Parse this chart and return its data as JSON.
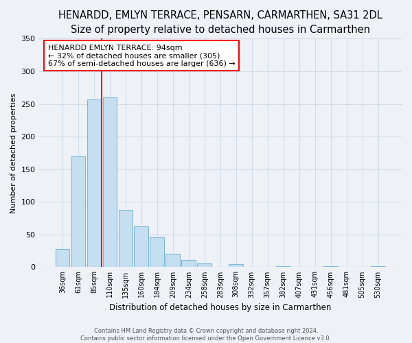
{
  "title": "HENARDD, EMLYN TERRACE, PENSARN, CARMARTHEN, SA31 2DL",
  "subtitle": "Size of property relative to detached houses in Carmarthen",
  "xlabel": "Distribution of detached houses by size in Carmarthen",
  "ylabel": "Number of detached properties",
  "bar_color": "#c5dff0",
  "bar_edge_color": "#7fb9d9",
  "categories": [
    "36sqm",
    "61sqm",
    "85sqm",
    "110sqm",
    "135sqm",
    "160sqm",
    "184sqm",
    "209sqm",
    "234sqm",
    "258sqm",
    "283sqm",
    "308sqm",
    "332sqm",
    "357sqm",
    "382sqm",
    "407sqm",
    "431sqm",
    "456sqm",
    "481sqm",
    "505sqm",
    "530sqm"
  ],
  "values": [
    28,
    170,
    257,
    260,
    88,
    62,
    46,
    20,
    11,
    6,
    0,
    5,
    0,
    0,
    2,
    0,
    0,
    1,
    0,
    0,
    1
  ],
  "ylim": [
    0,
    350
  ],
  "yticks": [
    0,
    50,
    100,
    150,
    200,
    250,
    300,
    350
  ],
  "property_line_label": "HENARDD EMLYN TERRACE: 94sqm",
  "annotation_smaller": "← 32% of detached houses are smaller (305)",
  "annotation_larger": "67% of semi-detached houses are larger (636) →",
  "footer_line1": "Contains HM Land Registry data © Crown copyright and database right 2024.",
  "footer_line2": "Contains public sector information licensed under the Open Government Licence v3.0.",
  "background_color": "#eef2f7",
  "grid_color": "#d0dce8",
  "title_fontsize": 10.5,
  "subtitle_fontsize": 9.5,
  "red_line_x": 2.5
}
